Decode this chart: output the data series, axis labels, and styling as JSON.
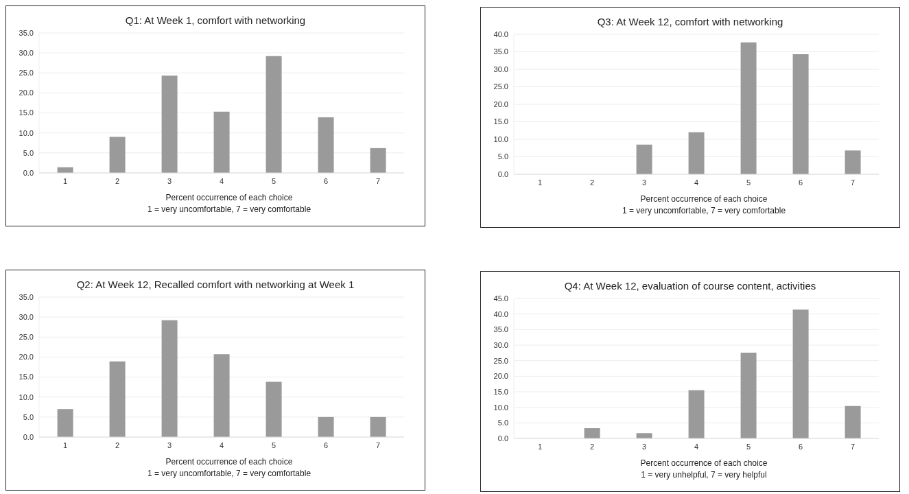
{
  "chart_data": [
    {
      "type": "bar",
      "title": "Q1: At Week 1, comfort with networking",
      "xlabel": "Percent occurrence of each choice\n1 = very uncomfortable, 7 = very comfortable",
      "categories": [
        "1",
        "2",
        "3",
        "4",
        "5",
        "6",
        "7"
      ],
      "values": [
        1.4,
        9.0,
        24.3,
        15.3,
        29.2,
        13.9,
        6.2
      ],
      "color": "#9a9a9a",
      "ylim": [
        0,
        35
      ],
      "yticks": [
        {
          "value": 0,
          "label": "0.0"
        },
        {
          "value": 5,
          "label": "5.0"
        },
        {
          "value": 10,
          "label": "10.0"
        },
        {
          "value": 15,
          "label": "15.0"
        },
        {
          "value": 20,
          "label": "20.0"
        },
        {
          "value": 25,
          "label": "25.0"
        },
        {
          "value": 30,
          "label": "30.0"
        },
        {
          "value": 35,
          "label": "35.0"
        }
      ],
      "grid": "y"
    },
    {
      "type": "bar",
      "title": "Q3: At Week 12, comfort with networking",
      "xlabel": "Percent occurrence of each choice\n1 = very uncomfortable, 7 = very comfortable",
      "categories": [
        "1",
        "2",
        "3",
        "4",
        "5",
        "6",
        "7"
      ],
      "values": [
        0,
        0,
        8.5,
        12.0,
        37.7,
        34.3,
        6.8
      ],
      "color": "#9a9a9a",
      "ylim": [
        0,
        40
      ],
      "yticks": [
        {
          "value": 0,
          "label": "0.0"
        },
        {
          "value": 5,
          "label": "5.0"
        },
        {
          "value": 10,
          "label": "10.0"
        },
        {
          "value": 15,
          "label": "15.0"
        },
        {
          "value": 20,
          "label": "20.0"
        },
        {
          "value": 25,
          "label": "25.0"
        },
        {
          "value": 30,
          "label": "30.0"
        },
        {
          "value": 35,
          "label": "35.0"
        },
        {
          "value": 40,
          "label": "40.0"
        }
      ],
      "grid": "y"
    },
    {
      "type": "bar",
      "title": "Q2: At Week 12, Recalled comfort with networking at Week 1",
      "xlabel": "Percent occurrence of each choice\n1 = very uncomfortable, 7 = very comfortable",
      "categories": [
        "1",
        "2",
        "3",
        "4",
        "5",
        "6",
        "7"
      ],
      "values": [
        7.0,
        18.9,
        29.2,
        20.7,
        13.8,
        5.0,
        5.0
      ],
      "color": "#9a9a9a",
      "ylim": [
        0,
        35
      ],
      "yticks": [
        {
          "value": 0,
          "label": "0.0"
        },
        {
          "value": 5,
          "label": "5.0"
        },
        {
          "value": 10,
          "label": "10.0"
        },
        {
          "value": 15,
          "label": "15.0"
        },
        {
          "value": 20,
          "label": "20.0"
        },
        {
          "value": 25,
          "label": "25.0"
        },
        {
          "value": 30,
          "label": "30.0"
        },
        {
          "value": 35,
          "label": "35.0"
        }
      ],
      "grid": "y"
    },
    {
      "type": "bar",
      "title": "Q4: At Week 12, evaluation of course content, activities",
      "xlabel": "Percent occurrence of each choice\n1 = very unhelpful, 7 = very helpful",
      "categories": [
        "1",
        "2",
        "3",
        "4",
        "5",
        "6",
        "7"
      ],
      "values": [
        0,
        3.3,
        1.7,
        15.5,
        27.6,
        41.4,
        10.4
      ],
      "color": "#9a9a9a",
      "ylim": [
        0,
        45
      ],
      "yticks": [
        {
          "value": 0,
          "label": "0.0"
        },
        {
          "value": 5,
          "label": "5.0"
        },
        {
          "value": 10,
          "label": "10.0"
        },
        {
          "value": 15,
          "label": "15.0"
        },
        {
          "value": 20,
          "label": "20.0"
        },
        {
          "value": 25,
          "label": "25.0"
        },
        {
          "value": 30,
          "label": "30.0"
        },
        {
          "value": 35,
          "label": "35.0"
        },
        {
          "value": 40,
          "label": "40.0"
        },
        {
          "value": 45,
          "label": "45.0"
        }
      ],
      "grid": "y"
    }
  ]
}
